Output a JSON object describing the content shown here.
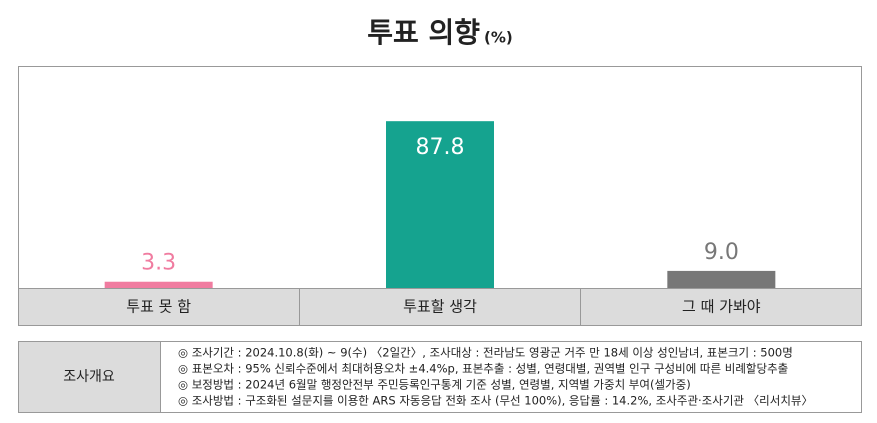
{
  "chart_data": {
    "type": "bar",
    "title": "투표 의향",
    "unit": "(%)",
    "categories": [
      "투표 못 함",
      "투표할 생각",
      "그 때 가봐야"
    ],
    "values": [
      3.3,
      87.8,
      9.0
    ],
    "value_labels": [
      "3.3",
      "87.8",
      "9.0"
    ],
    "colors": [
      "#f07ca0",
      "#15a38f",
      "#777777"
    ],
    "ylim": [
      0,
      100
    ]
  },
  "survey": {
    "label": "조사개요",
    "lines": [
      "◎ 조사기간 : 2024.10.8(화) ~ 9(수) 〈2일간〉, 조사대상 : 전라남도 영광군 거주 만 18세 이상 성인남녀, 표본크기 : 500명",
      "◎ 표본오차 : 95% 신뢰수준에서 최대허용오차 ±4.4%p, 표본추출 : 성별, 연령대별, 권역별 인구 구성비에 따른 비례할당추출",
      "◎ 보정방법 : 2024년 6월말 행정안전부 주민등록인구통계 기준 성별, 연령별, 지역별 가중치 부여(셀가중)",
      "◎ 조사방법 : 구조화된 설문지를 이용한 ARS 자동응답 전화 조사 (무선 100%), 응답률 : 14.2%, 조사주관·조사기관 〈리서치뷰〉"
    ]
  }
}
